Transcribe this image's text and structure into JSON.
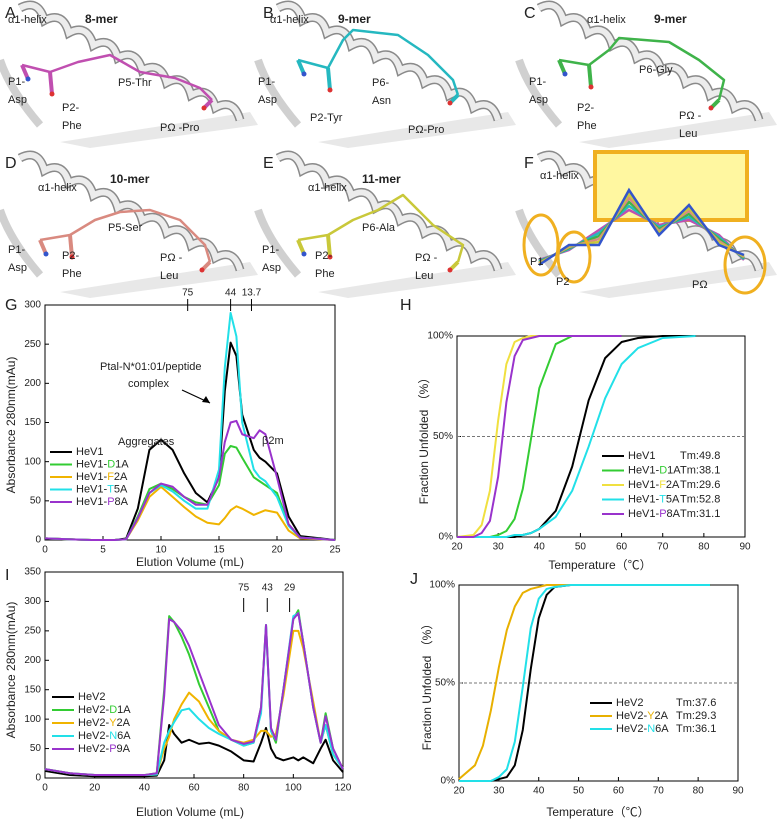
{
  "figure": {
    "panels": [
      {
        "letter": "A",
        "helix": "α1-helix",
        "title": "8-mer",
        "color": "#c04fb0",
        "labels": [
          [
            "P1-",
            "Asp"
          ],
          [
            "P2-",
            "Phe"
          ],
          [
            "P5-Thr"
          ],
          [
            "PΩ -Pro"
          ]
        ]
      },
      {
        "letter": "B",
        "helix": "α1-helix",
        "title": "9-mer",
        "color": "#25b8c0",
        "labels": [
          [
            "P1-",
            "Asp"
          ],
          [
            "P2-Tyr"
          ],
          [
            "P6-",
            "Asn"
          ],
          [
            "PΩ-Pro"
          ]
        ]
      },
      {
        "letter": "C",
        "helix": "α1-helix",
        "title": "9-mer",
        "color": "#3fb34a",
        "labels": [
          [
            "P1-",
            "Asp"
          ],
          [
            "P2-",
            "Phe"
          ],
          [
            "P6-Gly"
          ],
          [
            "PΩ -",
            "Leu"
          ]
        ]
      },
      {
        "letter": "D",
        "helix": "α1-helix",
        "title": "10-mer",
        "color": "#d98a80",
        "labels": [
          [
            "P1-",
            "Asp"
          ],
          [
            "P2-",
            "Phe"
          ],
          [
            "P5-Ser"
          ],
          [
            "PΩ -",
            "Leu"
          ]
        ]
      },
      {
        "letter": "E",
        "helix": "α1-helix",
        "title": "11-mer",
        "color": "#c9c83a",
        "labels": [
          [
            "P1-",
            "Asp"
          ],
          [
            "P2-",
            "Phe"
          ],
          [
            "P6-Ala"
          ],
          [
            "PΩ -",
            "Leu"
          ]
        ]
      },
      {
        "letter": "F",
        "helix": "α1-helix",
        "labels": [
          [
            "P1"
          ],
          [
            "P2"
          ],
          [
            "PΩ"
          ]
        ]
      }
    ]
  },
  "chart_data": [
    {
      "type": "line",
      "letter": "G",
      "xlabel": "Elution Volume (mL)",
      "ylabel": "Absorbance 280nm(mAu)",
      "xlim": [
        0,
        25
      ],
      "ylim": [
        0,
        300
      ],
      "xticks": [
        0,
        5,
        10,
        15,
        20,
        25
      ],
      "yticks": [
        0,
        50,
        100,
        150,
        200,
        250,
        300
      ],
      "annotations": [
        "Aggregates",
        "Ptal-N*01:01/peptide",
        "complex",
        "β2m"
      ],
      "markers": [
        {
          "label": "75",
          "x": 12.3
        },
        {
          "label": "44",
          "x": 16
        },
        {
          "label": "13.7",
          "x": 17.8
        }
      ],
      "x": [
        0,
        2,
        4,
        6,
        7,
        8,
        9,
        10,
        11,
        12,
        13,
        14,
        15,
        15.5,
        16,
        16.5,
        17,
        18,
        18.5,
        19,
        20,
        21,
        22,
        25
      ],
      "series": [
        {
          "name": "HeV1",
          "color": "#000000",
          "values": [
            2,
            1,
            0,
            0,
            2,
            40,
            115,
            128,
            115,
            85,
            60,
            48,
            80,
            190,
            252,
            235,
            160,
            115,
            105,
            100,
            85,
            30,
            5,
            0
          ]
        },
        {
          "name": "HeV1-D1A",
          "color": "#33cc33",
          "values": [
            2,
            1,
            0,
            0,
            1,
            30,
            65,
            72,
            65,
            55,
            48,
            45,
            70,
            110,
            120,
            118,
            105,
            80,
            75,
            70,
            60,
            20,
            3,
            0
          ]
        },
        {
          "name": "HeV1-F2A",
          "color": "#f0b400",
          "values": [
            2,
            1,
            0,
            0,
            1,
            25,
            55,
            68,
            55,
            42,
            30,
            22,
            20,
            28,
            38,
            43,
            40,
            32,
            35,
            38,
            35,
            12,
            2,
            0
          ]
        },
        {
          "name": "HeV1-T5A",
          "color": "#22e0e8",
          "values": [
            2,
            1,
            0,
            0,
            1,
            28,
            60,
            70,
            62,
            50,
            40,
            40,
            90,
            220,
            290,
            260,
            150,
            90,
            80,
            75,
            55,
            18,
            3,
            0
          ]
        },
        {
          "name": "HeV1-P8A",
          "color": "#9933cc",
          "values": [
            2,
            1,
            0,
            0,
            1,
            28,
            60,
            72,
            68,
            55,
            45,
            45,
            80,
            125,
            150,
            152,
            135,
            130,
            140,
            135,
            80,
            20,
            3,
            0
          ]
        }
      ]
    },
    {
      "type": "line",
      "letter": "H",
      "xlabel": "Temperature（℃）",
      "ylabel": "Fraction Unfolded （%）",
      "xlim": [
        20,
        90
      ],
      "ylim": [
        0,
        100
      ],
      "xticks": [
        20,
        30,
        40,
        50,
        60,
        70,
        80,
        90
      ],
      "yticks": [
        {
          "value": 0,
          "label": "0%"
        },
        {
          "value": 50,
          "label": "50%"
        },
        {
          "value": 100,
          "label": "100%"
        }
      ],
      "hline": 50,
      "x": [
        20,
        24,
        26,
        28,
        30,
        32,
        34,
        36,
        38,
        40,
        44,
        48,
        52,
        56,
        60,
        64,
        70,
        78
      ],
      "series": [
        {
          "name": "HeV1",
          "color": "#000000",
          "tm": "Tm:49.8",
          "values": [
            0,
            0,
            0,
            0,
            0,
            0,
            0,
            1,
            2,
            4,
            13,
            35,
            68,
            89,
            97,
            99,
            100,
            100
          ]
        },
        {
          "name": "HeV1-D1A",
          "color": "#33cc33",
          "tm": "Tm:38.1",
          "values": [
            0,
            0,
            0,
            0,
            1,
            3,
            9,
            24,
            49,
            74,
            96,
            100,
            100,
            100,
            100,
            null,
            null,
            null
          ]
        },
        {
          "name": "HeV1-F2A",
          "color": "#f0e040",
          "tm": "Tm:29.6",
          "values": [
            0,
            1,
            6,
            23,
            58,
            86,
            97,
            99,
            100,
            100,
            100,
            100,
            null,
            null,
            null,
            null,
            null,
            null
          ]
        },
        {
          "name": "HeV1-T5A",
          "color": "#22e0e8",
          "tm": "Tm:52.8",
          "values": [
            0,
            0,
            0,
            0,
            0,
            0,
            1,
            1,
            2,
            4,
            10,
            23,
            45,
            69,
            86,
            94,
            99,
            100
          ]
        },
        {
          "name": "HeV1-P8A",
          "color": "#9933cc",
          "tm": "Tm:31.1",
          "values": [
            0,
            0,
            2,
            8,
            30,
            67,
            90,
            98,
            99,
            100,
            100,
            100,
            100,
            100,
            100,
            null,
            null,
            null
          ]
        }
      ]
    },
    {
      "type": "line",
      "letter": "I",
      "xlabel": "Elution Volume (mL)",
      "ylabel": "Absorbance 280nm(mAu)",
      "xlim": [
        0,
        120
      ],
      "ylim": [
        0,
        350
      ],
      "xticks": [
        0,
        20,
        40,
        60,
        80,
        100,
        120
      ],
      "yticks": [
        0,
        50,
        100,
        150,
        200,
        250,
        300,
        350
      ],
      "markers": [
        {
          "label": "75",
          "x": 80
        },
        {
          "label": "43",
          "x": 89.5
        },
        {
          "label": "29",
          "x": 98.5
        }
      ],
      "x": [
        0,
        10,
        20,
        30,
        40,
        45,
        48,
        50,
        52,
        55,
        58,
        62,
        66,
        70,
        75,
        80,
        84,
        87,
        89,
        91,
        93,
        96,
        100,
        102,
        104,
        108,
        111,
        113,
        116,
        120
      ],
      "series": [
        {
          "name": "HeV2",
          "color": "#000000",
          "values": [
            12,
            5,
            3,
            3,
            3,
            4,
            30,
            90,
            75,
            60,
            65,
            58,
            60,
            55,
            45,
            30,
            28,
            60,
            85,
            50,
            35,
            30,
            35,
            30,
            35,
            25,
            50,
            65,
            30,
            10
          ]
        },
        {
          "name": "HeV2-D1A",
          "color": "#33cc33",
          "values": [
            15,
            8,
            5,
            5,
            5,
            8,
            150,
            275,
            265,
            240,
            210,
            160,
            120,
            80,
            65,
            55,
            60,
            120,
            260,
            80,
            60,
            150,
            270,
            285,
            230,
            120,
            60,
            110,
            50,
            15
          ]
        },
        {
          "name": "HeV2-Y2A",
          "color": "#f0b400",
          "values": [
            15,
            8,
            5,
            5,
            5,
            6,
            50,
            70,
            100,
            125,
            145,
            130,
            100,
            80,
            65,
            60,
            65,
            80,
            80,
            70,
            75,
            140,
            250,
            250,
            220,
            130,
            60,
            90,
            40,
            15
          ]
        },
        {
          "name": "HeV2-N6A",
          "color": "#22e0e8",
          "values": [
            15,
            8,
            5,
            5,
            5,
            6,
            60,
            80,
            95,
            115,
            118,
            100,
            85,
            75,
            65,
            55,
            60,
            110,
            260,
            80,
            65,
            150,
            275,
            280,
            230,
            120,
            60,
            90,
            40,
            15
          ]
        },
        {
          "name": "HeV2-P9A",
          "color": "#9933cc",
          "values": [
            15,
            8,
            5,
            5,
            5,
            8,
            140,
            270,
            265,
            250,
            225,
            180,
            135,
            90,
            65,
            58,
            62,
            120,
            260,
            85,
            65,
            150,
            270,
            280,
            230,
            120,
            60,
            105,
            50,
            15
          ]
        }
      ]
    },
    {
      "type": "line",
      "letter": "J",
      "xlabel": "Temperature（℃）",
      "ylabel": "Fraction Unfolded （%）",
      "xlim": [
        20,
        90
      ],
      "ylim": [
        0,
        100
      ],
      "xticks": [
        20,
        30,
        40,
        50,
        60,
        70,
        80,
        90
      ],
      "yticks": [
        {
          "value": 0,
          "label": "0%"
        },
        {
          "value": 50,
          "label": "50%"
        },
        {
          "value": 100,
          "label": "100%"
        }
      ],
      "hline": 50,
      "x": [
        20,
        24,
        26,
        28,
        30,
        32,
        34,
        36,
        38,
        40,
        42,
        44,
        48,
        52,
        60,
        70,
        83
      ],
      "series": [
        {
          "name": "HeV2",
          "color": "#000000",
          "tm": "Tm:37.6",
          "values": [
            0,
            0,
            0,
            0,
            1,
            2,
            8,
            26,
            57,
            83,
            95,
            99,
            100,
            100,
            100,
            100,
            100
          ]
        },
        {
          "name": "HeV2-Y2A",
          "color": "#e8b000",
          "tm": "Tm:29.3",
          "values": [
            1,
            8,
            18,
            36,
            58,
            77,
            89,
            96,
            98,
            99,
            100,
            100,
            100,
            100,
            100,
            100,
            100
          ]
        },
        {
          "name": "HeV2-N6A",
          "color": "#22e0e8",
          "tm": "Tm:36.1",
          "values": [
            0,
            0,
            0,
            0,
            2,
            6,
            20,
            48,
            78,
            93,
            98,
            99,
            100,
            100,
            100,
            100,
            100
          ]
        }
      ]
    }
  ]
}
